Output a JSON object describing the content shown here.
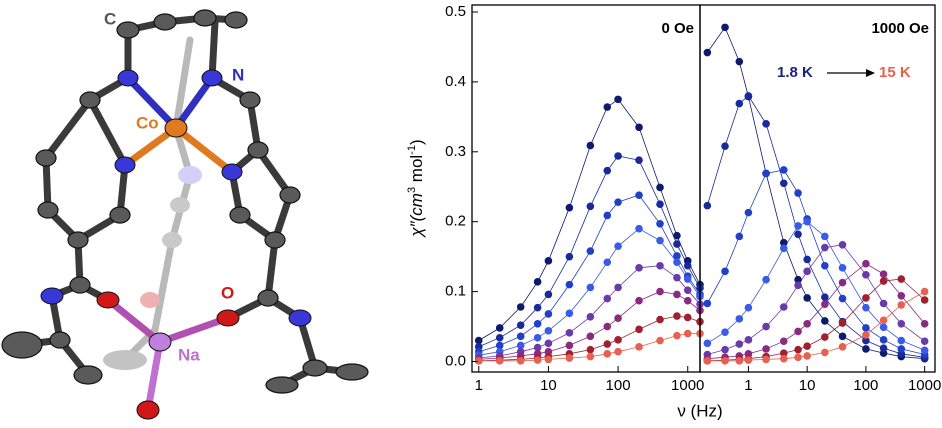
{
  "molecule": {
    "labels": [
      "C",
      "N",
      "Co",
      "O",
      "Na"
    ]
  },
  "figure": {
    "ylabel": [
      "χ″(cm",
      "3",
      " mol",
      "-1",
      ")"
    ],
    "xlabel": "ν (Hz)"
  },
  "chart_data": [
    {
      "type": "line",
      "panel_label": "0 Oe",
      "xscale": "log",
      "xlim": [
        0.8,
        1500
      ],
      "ylim": [
        -0.015,
        0.51
      ],
      "xticks": [
        1,
        10,
        100,
        1000
      ],
      "yticks": [
        {
          "value": 0,
          "label": "0.0"
        },
        0.1,
        0.2,
        0.3,
        0.4,
        0.5
      ],
      "x": [
        1,
        2,
        4,
        7,
        10,
        20,
        40,
        70,
        100,
        200,
        400,
        700,
        1000,
        1500
      ],
      "series": [
        {
          "color": "#0d1a6e",
          "values": [
            0.03,
            0.048,
            0.078,
            0.114,
            0.144,
            0.22,
            0.309,
            0.364,
            0.375,
            0.335,
            0.249,
            0.18,
            0.144,
            0.11
          ]
        },
        {
          "color": "#1a2a9a",
          "values": [
            0.021,
            0.034,
            0.052,
            0.077,
            0.096,
            0.15,
            0.222,
            0.273,
            0.294,
            0.288,
            0.225,
            0.168,
            0.137,
            0.105
          ]
        },
        {
          "color": "#2040c8",
          "values": [
            0.014,
            0.023,
            0.036,
            0.054,
            0.068,
            0.11,
            0.158,
            0.209,
            0.228,
            0.238,
            0.197,
            0.151,
            0.122,
            0.096
          ]
        },
        {
          "color": "#3a5ae8",
          "values": [
            0.009,
            0.014,
            0.023,
            0.034,
            0.044,
            0.069,
            0.106,
            0.142,
            0.165,
            0.19,
            0.173,
            0.142,
            0.118,
            0.093
          ]
        },
        {
          "color": "#6a3aa8",
          "values": [
            0.005,
            0.008,
            0.014,
            0.02,
            0.026,
            0.041,
            0.064,
            0.09,
            0.106,
            0.134,
            0.137,
            0.12,
            0.102,
            0.082
          ]
        },
        {
          "color": "#8a2a80",
          "values": [
            0.003,
            0.005,
            0.008,
            0.011,
            0.014,
            0.023,
            0.036,
            0.05,
            0.062,
            0.087,
            0.1,
            0.096,
            0.087,
            0.073
          ]
        },
        {
          "color": "#a02030",
          "values": [
            0.001,
            0.002,
            0.003,
            0.005,
            0.007,
            0.011,
            0.017,
            0.025,
            0.031,
            0.046,
            0.06,
            0.065,
            0.063,
            0.057
          ]
        },
        {
          "color": "#e86050",
          "values": [
            0.001,
            0.001,
            0.001,
            0.002,
            0.003,
            0.005,
            0.007,
            0.011,
            0.014,
            0.021,
            0.03,
            0.037,
            0.04,
            0.04
          ]
        }
      ]
    },
    {
      "type": "line",
      "panel_label": "1000 Oe",
      "xscale": "log",
      "xlim": [
        0.15,
        1500
      ],
      "ylim": [
        -0.015,
        0.51
      ],
      "xticks": [
        1,
        10,
        100,
        1000
      ],
      "annotations": [
        "1.8 K",
        "15 K"
      ],
      "x": [
        0.2,
        0.4,
        0.7,
        1,
        2,
        4,
        7,
        10,
        20,
        40,
        100,
        200,
        400,
        1000
      ],
      "series": [
        {
          "color": "#0d1a6e",
          "values": [
            0.442,
            0.478,
            0.429,
            0.379,
            0.269,
            0.17,
            0.117,
            0.091,
            0.058,
            0.036,
            0.018,
            0.012,
            0.007,
            0.004
          ]
        },
        {
          "color": "#1a2a9a",
          "values": [
            0.223,
            0.308,
            0.369,
            0.38,
            0.34,
            0.255,
            0.182,
            0.146,
            0.092,
            0.057,
            0.03,
            0.019,
            0.011,
            0.006
          ]
        },
        {
          "color": "#2040c8",
          "values": [
            0.083,
            0.129,
            0.179,
            0.213,
            0.269,
            0.274,
            0.241,
            0.204,
            0.137,
            0.09,
            0.048,
            0.031,
            0.018,
            0.01
          ]
        },
        {
          "color": "#3a5ae8",
          "values": [
            0.026,
            0.042,
            0.061,
            0.077,
            0.117,
            0.162,
            0.194,
            0.2,
            0.179,
            0.134,
            0.077,
            0.049,
            0.03,
            0.016
          ]
        },
        {
          "color": "#6a3aa8",
          "values": [
            0.01,
            0.017,
            0.025,
            0.031,
            0.05,
            0.078,
            0.109,
            0.129,
            0.163,
            0.167,
            0.124,
            0.083,
            0.054,
            0.029
          ]
        },
        {
          "color": "#8a2a80",
          "values": [
            0.004,
            0.006,
            0.008,
            0.011,
            0.018,
            0.029,
            0.043,
            0.054,
            0.082,
            0.113,
            0.14,
            0.125,
            0.094,
            0.054
          ]
        },
        {
          "color": "#a02030",
          "values": [
            0.001,
            0.002,
            0.003,
            0.004,
            0.007,
            0.012,
            0.017,
            0.022,
            0.035,
            0.055,
            0.091,
            0.115,
            0.118,
            0.088
          ]
        },
        {
          "color": "#e86050",
          "values": [
            0.001,
            0.001,
            0.001,
            0.002,
            0.003,
            0.004,
            0.006,
            0.008,
            0.013,
            0.021,
            0.038,
            0.059,
            0.081,
            0.1
          ]
        }
      ]
    }
  ]
}
